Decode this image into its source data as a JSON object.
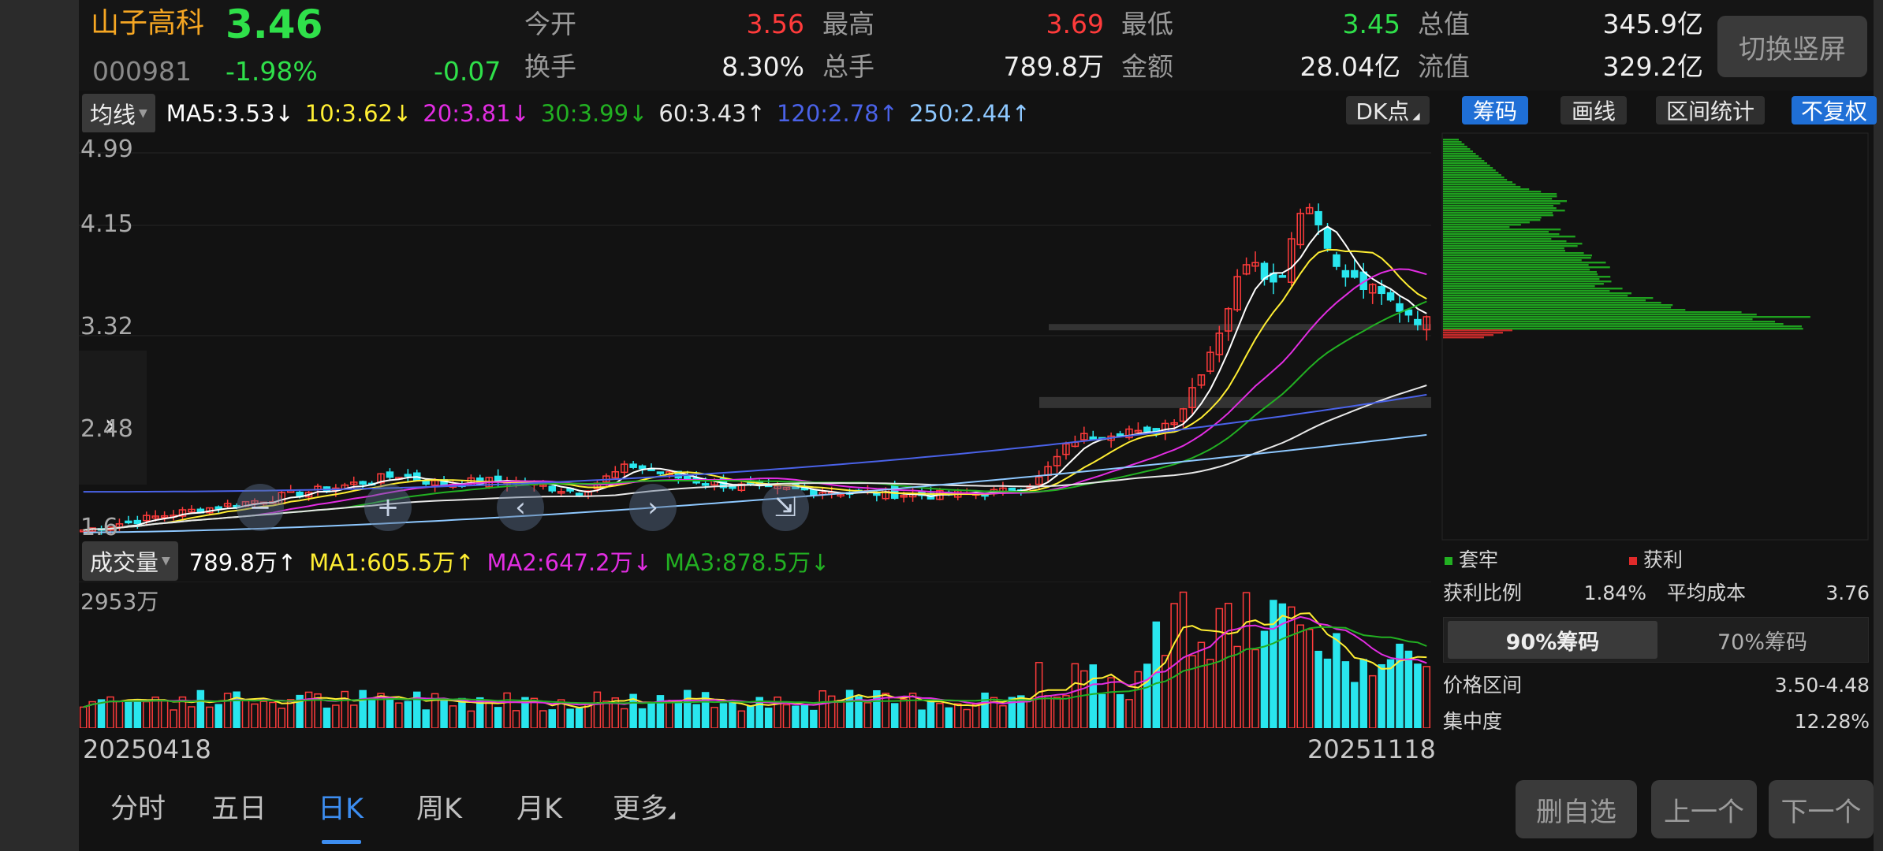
{
  "stock": {
    "name": "山子高科",
    "code": "000981",
    "price": "3.46",
    "change_pct": "-1.98%",
    "change": "-0.07"
  },
  "quote": {
    "open_label": "今开",
    "open": "3.56",
    "high_label": "最高",
    "high": "3.69",
    "low_label": "最低",
    "low": "3.45",
    "mktcap_label": "总值",
    "mktcap": "345.9亿",
    "turnover_label": "换手",
    "turnover": "8.30%",
    "volume_label": "总手",
    "volume": "789.8万",
    "amount_label": "金额",
    "amount": "28.04亿",
    "float_label": "流值",
    "float": "329.2亿"
  },
  "header": {
    "swap_button": "切换竖屏"
  },
  "ma_bar": {
    "selector": "均线",
    "ma5": "MA5:3.53↓",
    "ma10": "10:3.62↓",
    "ma20": "20:3.81↓",
    "ma30": "30:3.99↓",
    "ma60": "60:3.43↑",
    "ma120": "120:2.78↑",
    "ma250": "250:2.44↑",
    "dk": "DK点"
  },
  "right_tabs": [
    "筹码",
    "画线",
    "区间统计",
    "不复权"
  ],
  "price_axis": [
    "4.99",
    "4.15",
    "3.32",
    "2.48",
    "1.6"
  ],
  "volume_bar": {
    "selector": "成交量",
    "vol": "789.8万↑",
    "ma1": "MA1:605.5万↑",
    "ma2": "MA2:647.2万↓",
    "ma3": "MA3:878.5万↓",
    "axis_max": "2953万"
  },
  "dates": {
    "start": "20250418",
    "end": "20251118"
  },
  "chip": {
    "legend_trapped": "套牢",
    "legend_profit": "获利",
    "profit_ratio_label": "获利比例",
    "profit_ratio": "1.84%",
    "avg_cost_label": "平均成本",
    "avg_cost": "3.76",
    "tab90": "90%筹码",
    "tab70": "70%筹码",
    "range_label": "价格区间",
    "range": "3.50-4.48",
    "concentration_label": "集中度",
    "concentration": "12.28%"
  },
  "bottom_nav": [
    "分时",
    "五日",
    "日K",
    "周K",
    "月K",
    "更多"
  ],
  "bottom_buttons": [
    "删自选",
    "上一个",
    "下一个"
  ],
  "colors": {
    "up": "#ff3b3b",
    "down": "#29e6ee",
    "ma5": "#ffffff",
    "ma10": "#ffee33",
    "ma20": "#e22de2",
    "ma30": "#22b022",
    "ma60": "#e8e8e8",
    "ma120": "#4a62e8",
    "ma250": "#8ec8ff",
    "active_tab": "#3d8df0"
  }
}
